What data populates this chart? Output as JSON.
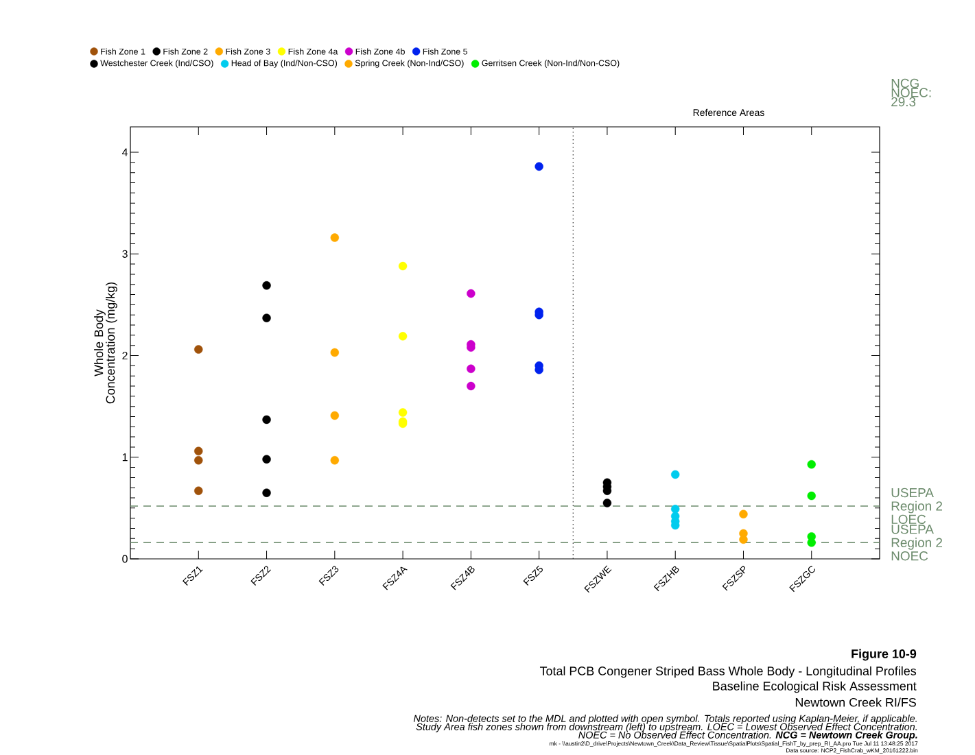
{
  "chart_data": {
    "type": "scatter",
    "title": "Figure 10-9",
    "subtitle": "Total PCB Congener Striped Bass Whole Body - Longitudinal Profiles",
    "ylabel": "Whole Body Concentration (mg/kg)",
    "categories": [
      "FSZ1",
      "FSZ2",
      "FSZ3",
      "FSZ4A",
      "FSZ4B",
      "FSZ5",
      "FSZWE",
      "FSZHB",
      "FSZSP",
      "FSZGC"
    ],
    "ylim": [
      0,
      4.25
    ],
    "yticks": [
      0,
      1,
      2,
      3,
      4
    ],
    "marker": "circle",
    "legend": "top",
    "grid": false,
    "series": [
      {
        "name": "Fish Zone 1",
        "color": "#a0520a",
        "x": [
          "FSZ1",
          "FSZ1",
          "FSZ1",
          "FSZ1"
        ],
        "values": [
          2.06,
          1.06,
          0.97,
          0.67
        ]
      },
      {
        "name": "Fish Zone 2",
        "color": "#000000",
        "x": [
          "FSZ2",
          "FSZ2",
          "FSZ2",
          "FSZ2",
          "FSZ2"
        ],
        "values": [
          2.69,
          2.37,
          1.37,
          0.98,
          0.65
        ]
      },
      {
        "name": "Fish Zone 3",
        "color": "#ffaa00",
        "x": [
          "FSZ3",
          "FSZ3",
          "FSZ3",
          "FSZ3"
        ],
        "values": [
          3.16,
          2.03,
          1.41,
          0.97
        ]
      },
      {
        "name": "Fish Zone 4a",
        "color": "#ffff00",
        "x": [
          "FSZ4A",
          "FSZ4A",
          "FSZ4A",
          "FSZ4A",
          "FSZ4A"
        ],
        "values": [
          2.88,
          2.19,
          1.44,
          1.35,
          1.33
        ]
      },
      {
        "name": "Fish Zone 4b",
        "color": "#cc00cc",
        "x": [
          "FSZ4B",
          "FSZ4B",
          "FSZ4B",
          "FSZ4B",
          "FSZ4B"
        ],
        "values": [
          2.61,
          2.11,
          2.08,
          1.87,
          1.7
        ]
      },
      {
        "name": "Fish Zone 5",
        "color": "#0022ee",
        "x": [
          "FSZ5",
          "FSZ5",
          "FSZ5",
          "FSZ5",
          "FSZ5"
        ],
        "values": [
          3.86,
          2.43,
          2.4,
          1.9,
          1.86
        ]
      },
      {
        "name": "Westchester Creek (Ind/CSO)",
        "color": "#000000",
        "x": [
          "FSZWE",
          "FSZWE",
          "FSZWE",
          "FSZWE"
        ],
        "values": [
          0.75,
          0.71,
          0.67,
          0.55
        ]
      },
      {
        "name": "Head of Bay (Ind/Non-CSO)",
        "color": "#00ccee",
        "x": [
          "FSZHB",
          "FSZHB",
          "FSZHB",
          "FSZHB",
          "FSZHB"
        ],
        "values": [
          0.83,
          0.49,
          0.42,
          0.37,
          0.33
        ]
      },
      {
        "name": "Spring Creek (Non-Ind/CSO)",
        "color": "#ffaa00",
        "x": [
          "FSZSP",
          "FSZSP",
          "FSZSP"
        ],
        "values": [
          0.44,
          0.25,
          0.19
        ]
      },
      {
        "name": "Gerritsen Creek (Non-Ind/Non-CSO)",
        "color": "#00ee00",
        "x": [
          "FSZGC",
          "FSZGC",
          "FSZGC",
          "FSZGC"
        ],
        "values": [
          0.93,
          0.62,
          0.22,
          0.16
        ]
      }
    ],
    "ref_lines": [
      {
        "axis": "y",
        "value": 0.52,
        "label": "USEPA Region 2 LOEC",
        "color": "#6b8a6b",
        "line_style": "dashed"
      },
      {
        "axis": "y",
        "value": 0.16,
        "label": "USEPA Region 2 NOEC",
        "color": "#6b8a6b",
        "line_style": "dashed"
      }
    ],
    "annotations": [
      "Reference Areas",
      "NCG NOEC: 29.3",
      "Baseline Ecological Risk Assessment",
      "Newtown Creek RI/FS",
      "Notes: Non-detects set to the MDL and plotted with open symbol. Totals reported using Kaplan-Meier, if applicable.",
      "Study Area fish zones shown from downstream (left) to upstream. LOEC = Lowest Observed Effect Concentration.",
      "NOEC = No Observed Effect Concentration. **NCG = Newtown Creek Group.**",
      "mk - \\\\austin2\\D_drive\\Projects\\Newtown_Creek\\Data_Review\\Tissue\\SpatialPlots\\Spatial_FishT_by_prep_RI_AA.pro Tue Jul 11 13:48:25 2017",
      "Data source: NCP2_FishCrab_wKM_20161222.bin"
    ]
  }
}
